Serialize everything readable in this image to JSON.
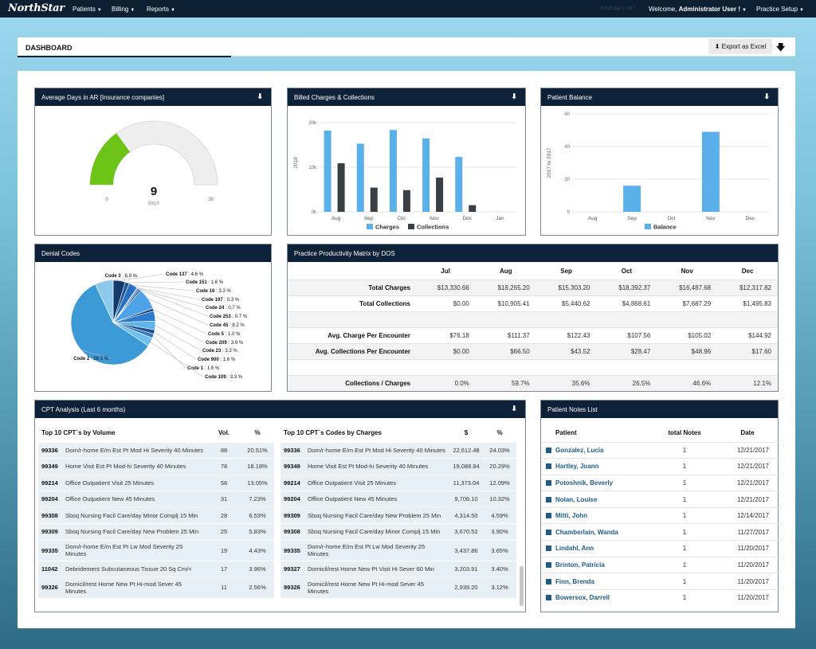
{
  "nav": {
    "logo": "NorthStar",
    "items": [
      "Patients",
      "Billing",
      "Reports"
    ],
    "version": "v3.0.12 Dec 1, 2017",
    "welcome_prefix": "Welcome,",
    "user": "Administrator User !",
    "practice_setup": "Practice Setup"
  },
  "header": {
    "title": "DASHBOARD",
    "export_label": "Export as Excel"
  },
  "ar_panel": {
    "title": "Average Days in AR [Insurance companies]",
    "value": "9",
    "unit": "days",
    "min": "0",
    "max": "30",
    "fraction": 0.3
  },
  "billed_panel": {
    "title": "Billed Charges & Collections",
    "chart_data": {
      "type": "bar",
      "categories": [
        "Aug",
        "Sep",
        "Oct",
        "Nov",
        "Dec",
        "Jan"
      ],
      "series": [
        {
          "name": "Charges",
          "values": [
            18265.2,
            15303.2,
            18392.37,
            16487.68,
            12317.82,
            0
          ],
          "color": "#5ab1ea"
        },
        {
          "name": "Collections",
          "values": [
            10905.41,
            5440.62,
            4868.61,
            7687.29,
            1495.83,
            0
          ],
          "color": "#3a3f44"
        }
      ],
      "ylabel": "2018",
      "yticks": [
        "0k",
        "10k",
        "20k"
      ],
      "ylim": [
        0,
        22000
      ]
    }
  },
  "balance_panel": {
    "title": "Patient Balance",
    "chart_data": {
      "type": "bar",
      "categories": [
        "Aug",
        "Sep",
        "Oct",
        "Nov",
        "Dec"
      ],
      "series": [
        {
          "name": "Balance",
          "values": [
            0,
            16,
            0,
            49,
            0
          ],
          "color": "#5ab1ea"
        }
      ],
      "ylabel": "2017 to 2017",
      "yticks": [
        "0",
        "20",
        "40",
        "60"
      ],
      "ylim": [
        0,
        60
      ]
    }
  },
  "denial_panel": {
    "title": "Denial Codes",
    "chart_data": {
      "type": "pie",
      "slices": [
        {
          "label": "Code 137",
          "value": "4.6 %",
          "pct": 4.6
        },
        {
          "label": "Code 151",
          "value": "1.6 %",
          "pct": 1.6
        },
        {
          "label": "Code 16",
          "value": "3.3 %",
          "pct": 3.3
        },
        {
          "label": "Code 197",
          "value": "0.3 %",
          "pct": 0.3
        },
        {
          "label": "Code 24",
          "value": "0.7 %",
          "pct": 0.7
        },
        {
          "label": "Code 253",
          "value": "0.7 %",
          "pct": 0.7
        },
        {
          "label": "Code 45",
          "value": "8.2 %",
          "pct": 8.2
        },
        {
          "label": "Code 5",
          "value": "1.0 %",
          "pct": 1.0
        },
        {
          "label": "Code 209",
          "value": "3.9 %",
          "pct": 3.9
        },
        {
          "label": "Code 23",
          "value": "3.3 %",
          "pct": 3.3
        },
        {
          "label": "Code 900",
          "value": "1.6 %",
          "pct": 1.6
        },
        {
          "label": "Code 1",
          "value": "1.6 %",
          "pct": 1.6
        },
        {
          "label": "Code 109",
          "value": "3.3 %",
          "pct": 3.3
        },
        {
          "label": "Code 2",
          "value": "58.3 %",
          "pct": 58.3
        },
        {
          "label": "Code 3",
          "value": "6.9 %",
          "pct": 6.9
        }
      ]
    }
  },
  "productivity": {
    "title": "Practice Productivity Matrix by DOS",
    "months": [
      "Jul",
      "Aug",
      "Sep",
      "Oct",
      "Nov",
      "Dec"
    ],
    "rows": [
      {
        "label": "Total Charges",
        "values": [
          "$13,330.66",
          "$18,265.20",
          "$15,303.20",
          "$18,392.37",
          "$16,487.68",
          "$12,317.82"
        ]
      },
      {
        "label": "Total Collections",
        "values": [
          "$0.00",
          "$10,905.41",
          "$5,440.62",
          "$4,868.61",
          "$7,687.29",
          "$1,495.83"
        ]
      },
      {
        "label": "",
        "values": [
          "",
          "",
          "",
          "",
          "",
          ""
        ]
      },
      {
        "label": "Avg. Charge Per Encounter",
        "values": [
          "$76.18",
          "$111.37",
          "$122.43",
          "$107.56",
          "$105.02",
          "$144.92"
        ]
      },
      {
        "label": "Avg. Collections Per Encounter",
        "values": [
          "$0.00",
          "$66.50",
          "$43.52",
          "$28.47",
          "$48.96",
          "$17.60"
        ]
      },
      {
        "label": "",
        "values": [
          "",
          "",
          "",
          "",
          "",
          ""
        ]
      },
      {
        "label": "Collections / Charges",
        "values": [
          "0.0%",
          "59.7%",
          "35.6%",
          "26.5%",
          "46.6%",
          "12.1%"
        ]
      }
    ]
  },
  "cpt": {
    "title": "CPT Analysis (Last 6 months)",
    "volume": {
      "headers": [
        "Top 10 CPT`s by Volume",
        "Vol.",
        "%"
      ],
      "rows": [
        [
          "99336",
          "Dom/r-home E/m Est Pt Mod Hi Severity 40 Minutes",
          "88",
          "20.51%"
        ],
        [
          "99349",
          "Home Visit Est Pt Mod-hi Severity 40 Minutes",
          "78",
          "18.18%"
        ],
        [
          "99214",
          "Office Outpatient Visit 25 Minutes",
          "56",
          "13.05%"
        ],
        [
          "99204",
          "Office Outpatient New 45 Minutes",
          "31",
          "7.23%"
        ],
        [
          "99308",
          "Sbsq Nursing Facil Care/day Minor Complj 15 Min",
          "28",
          "6.53%"
        ],
        [
          "99309",
          "Sbsq Nursing Facil Care/day New Problem 25 Min",
          "25",
          "5.83%"
        ],
        [
          "99335",
          "Dom/r-home E/m Est Pt Lw Mod Severity 25 Minutes",
          "19",
          "4.43%"
        ],
        [
          "11042",
          "Debridement Subcutaneous Tissue 20 Sq Cm/<",
          "17",
          "3.96%"
        ],
        [
          "99326",
          "Domicil/rest Home New Pt Hi-mod Sever 45 Minutes",
          "11",
          "2.56%"
        ]
      ]
    },
    "charges": {
      "headers": [
        "Top 10 CPT`s Codes by Charges",
        "$",
        "%"
      ],
      "rows": [
        [
          "99336",
          "Dom/r-home E/m Est Pt Mod Hi Severity 40 Minutes",
          "22,612.48",
          "24.03%"
        ],
        [
          "99349",
          "Home Visit Est Pt Mod-hi Severity 40 Minutes",
          "19,088.94",
          "20.29%"
        ],
        [
          "99214",
          "Office Outpatient Visit 25 Minutes",
          "11,373.04",
          "12.09%"
        ],
        [
          "99204",
          "Office Outpatient New 45 Minutes",
          "9,706.10",
          "10.32%"
        ],
        [
          "99309",
          "Sbsq Nursing Facil Care/day New Problem 25 Min",
          "4,314.50",
          "4.59%"
        ],
        [
          "99308",
          "Sbsq Nursing Facil Care/day Minor Complj 15 Min",
          "3,670.52",
          "3.90%"
        ],
        [
          "99335",
          "Dom/r-home E/m Est Pt Lw Mod Severity 25 Minutes",
          "3,437.86",
          "3.65%"
        ],
        [
          "99327",
          "Domicil/rest Home New Pt Visit Hi Sever 60 Min",
          "3,203.91",
          "3.40%"
        ],
        [
          "99326",
          "Domicil/rest Home New Pt Hi-mod Sever 45 Minutes",
          "2,939.20",
          "3.12%"
        ]
      ]
    }
  },
  "notes": {
    "title": "Patient Notes List",
    "headers": [
      "Patient",
      "total Notes",
      "Date"
    ],
    "rows": [
      [
        "Gonzalez, Lucia",
        "1",
        "12/21/2017"
      ],
      [
        "Hartley, Joann",
        "1",
        "12/21/2017"
      ],
      [
        "Potoshnik, Beverly",
        "1",
        "12/21/2017"
      ],
      [
        "Nolan, Louise",
        "1",
        "12/21/2017"
      ],
      [
        "Mitti, John",
        "1",
        "12/14/2017"
      ],
      [
        "Chamberlain, Wanda",
        "1",
        "11/27/2017"
      ],
      [
        "Lindahl, Ann",
        "1",
        "11/20/2017"
      ],
      [
        "Brinton, Patricia",
        "1",
        "11/20/2017"
      ],
      [
        "Finn, Brenda",
        "1",
        "11/20/2017"
      ],
      [
        "Bowersox, Darrell",
        "1",
        "11/20/2017"
      ]
    ]
  }
}
